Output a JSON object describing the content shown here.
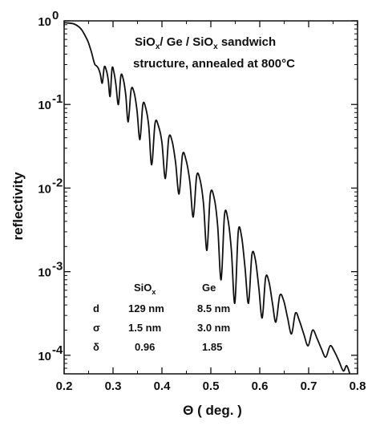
{
  "chart_data": {
    "type": "line",
    "xlabel": "Θ ( deg. )",
    "ylabel": "reflectivity",
    "xlim": [
      0.2,
      0.8
    ],
    "ylim": [
      6e-05,
      1.0
    ],
    "yscale": "log",
    "grid": false,
    "legend": "none",
    "line_color": "#111111",
    "x_ticks": [
      0.2,
      0.3,
      0.4,
      0.5,
      0.6,
      0.7,
      0.8
    ],
    "x_tick_labels": [
      "0.2",
      "0.3",
      "0.4",
      "0.5",
      "0.6",
      "0.7",
      "0.8"
    ],
    "y_ticks": [
      {
        "value": 1,
        "mantissa": "10",
        "exponent": "0"
      },
      {
        "value": 0.1,
        "mantissa": "10",
        "exponent": "-1"
      },
      {
        "value": 0.01,
        "mantissa": "10",
        "exponent": "-2"
      },
      {
        "value": 0.001,
        "mantissa": "10",
        "exponent": "-3"
      },
      {
        "value": 0.0001,
        "mantissa": "10",
        "exponent": "-4"
      }
    ],
    "annotation": {
      "line1": {
        "a": "SiO",
        "a_sub": "x",
        "b": "/ Ge / SiO",
        "b_sub": "x",
        "c": " sandwich"
      },
      "line2": "structure, annealed at 800°C"
    },
    "param_table": {
      "headers": [
        {
          "main": "SiO",
          "sub": "x"
        },
        {
          "main": "Ge",
          "sub": ""
        }
      ],
      "rows": [
        {
          "symbol": "d",
          "values": [
            "129 nm",
            "8.5 nm"
          ]
        },
        {
          "symbol": "σ",
          "values": [
            "1.5 nm",
            "3.0 nm"
          ]
        },
        {
          "symbol": "δ",
          "values": [
            "0.96",
            "1.85"
          ]
        }
      ]
    },
    "series": [
      {
        "x": [
          0.2,
          0.21,
          0.22,
          0.23,
          0.236,
          0.242,
          0.248,
          0.252,
          0.256,
          0.26,
          0.263,
          0.266,
          0.27,
          0.274,
          0.278,
          0.282,
          0.286,
          0.29,
          0.294,
          0.298,
          0.302,
          0.306,
          0.311,
          0.316,
          0.321,
          0.326,
          0.331,
          0.337,
          0.343,
          0.349,
          0.355,
          0.361,
          0.367,
          0.373,
          0.379,
          0.386,
          0.393,
          0.4,
          0.407,
          0.414,
          0.421,
          0.428,
          0.435,
          0.442,
          0.449,
          0.457,
          0.464,
          0.471,
          0.478,
          0.485,
          0.492,
          0.499,
          0.507,
          0.514,
          0.521,
          0.528,
          0.535,
          0.542,
          0.549,
          0.556,
          0.563,
          0.57,
          0.577,
          0.584,
          0.591,
          0.598,
          0.605,
          0.612,
          0.619,
          0.626,
          0.633,
          0.641,
          0.649,
          0.657,
          0.665,
          0.673,
          0.681,
          0.69,
          0.699,
          0.708,
          0.717,
          0.726,
          0.735,
          0.744,
          0.753,
          0.762,
          0.771,
          0.778,
          0.786
        ],
        "y": [
          0.95,
          0.94,
          0.92,
          0.85,
          0.78,
          0.68,
          0.58,
          0.5,
          0.42,
          0.34,
          0.3,
          0.29,
          0.27,
          0.23,
          0.18,
          0.28,
          0.26,
          0.2,
          0.125,
          0.27,
          0.24,
          0.17,
          0.1,
          0.22,
          0.2,
          0.13,
          0.062,
          0.15,
          0.14,
          0.085,
          0.038,
          0.1,
          0.09,
          0.055,
          0.019,
          0.06,
          0.055,
          0.035,
          0.013,
          0.04,
          0.036,
          0.02,
          0.0085,
          0.025,
          0.022,
          0.012,
          0.0045,
          0.014,
          0.0125,
          0.0065,
          0.0018,
          0.0085,
          0.0075,
          0.0035,
          0.0008,
          0.0048,
          0.0042,
          0.0018,
          0.00042,
          0.003,
          0.0026,
          0.0011,
          0.00042,
          0.0016,
          0.0014,
          0.00065,
          0.00028,
          0.00085,
          0.00075,
          0.00042,
          0.00025,
          0.00052,
          0.00045,
          0.00028,
          0.00018,
          0.00032,
          0.00026,
          0.00018,
          0.00013,
          0.0002,
          0.00016,
          0.00012,
          9.5e-05,
          0.00013,
          0.00011,
          8.5e-05,
          6.5e-05,
          7.5e-05,
          5.5e-05
        ]
      }
    ]
  }
}
